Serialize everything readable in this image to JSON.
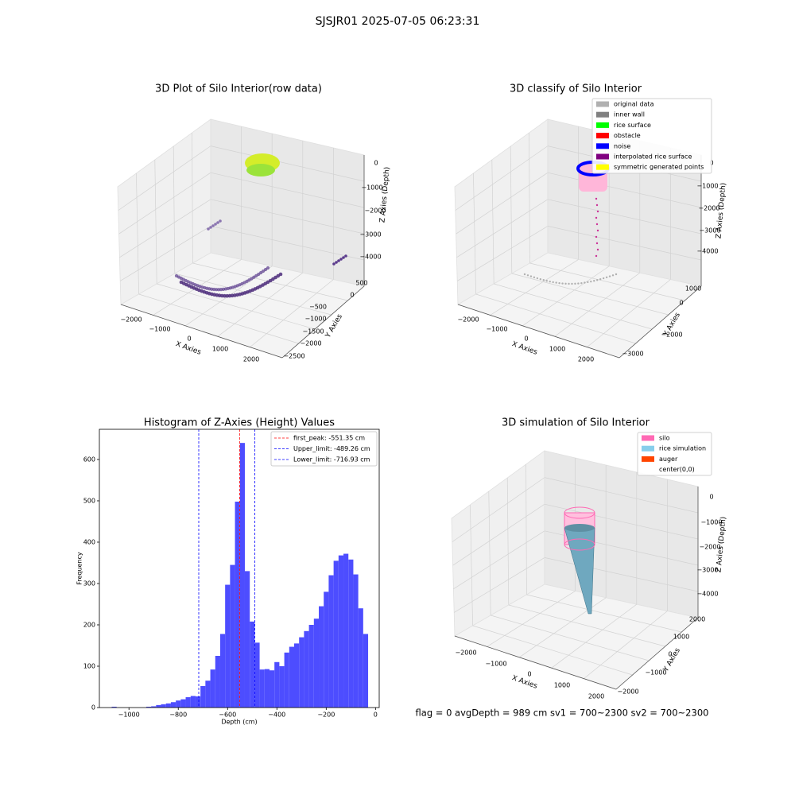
{
  "title": "SJSJR01 2025-07-05 06:23:31",
  "footer": "flag = 0     avgDepth = 989 cm  sv1 = 700~2300  sv2 = 700~2300",
  "chart_data": [
    {
      "type": "scatter3d",
      "title": "3D Plot of Silo Interior(row data)",
      "xlabel": "X Axies",
      "ylabel": "Y Axies",
      "zlabel": "Z Axies (Depth)",
      "x_tick_labels": [
        "−2000",
        "−1000",
        "0",
        "1000",
        "2000"
      ],
      "y_tick_labels": [
        "500",
        "0",
        "−500",
        "−1000",
        "−1500",
        "−2000",
        "−2500"
      ],
      "z_tick_labels": [
        "0",
        "−1000",
        "−2000",
        "−3000",
        "−4000"
      ]
    },
    {
      "type": "scatter3d",
      "title": "3D classify of Silo Interior",
      "xlabel": "X Axies",
      "ylabel": "Y Axies",
      "zlabel": "Z Axies (Depth)",
      "x_tick_labels": [
        "−2000",
        "−1000",
        "0",
        "1000",
        "2000"
      ],
      "y_tick_labels": [
        "1000",
        "0",
        "−2000",
        "−3000"
      ],
      "z_tick_labels": [
        "0",
        "−1000",
        "−2000",
        "−3000",
        "−4000"
      ],
      "legend": [
        {
          "name": "original data",
          "color": "#b0b0b0"
        },
        {
          "name": "inner wall",
          "color": "#808080"
        },
        {
          "name": "rice surface",
          "color": "#00ff00"
        },
        {
          "name": "obstacle",
          "color": "#ff0000"
        },
        {
          "name": "noise",
          "color": "#0000ff"
        },
        {
          "name": "interpolated rice surface",
          "color": "#800080"
        },
        {
          "name": "symmetric generated points",
          "color": "#ffff00"
        }
      ]
    },
    {
      "type": "histogram",
      "title": "Histogram of Z-Axies (Height) Values",
      "xlabel": "Depth (cm)",
      "ylabel": "Frequency",
      "color": "#4d4dff",
      "bins": [
        -1070,
        -1050,
        -1030,
        -1010,
        -990,
        -970,
        -950,
        -930,
        -910,
        -890,
        -870,
        -850,
        -830,
        -810,
        -790,
        -770,
        -750,
        -730,
        -710,
        -690,
        -670,
        -650,
        -630,
        -610,
        -590,
        -570,
        -550,
        -530,
        -510,
        -490,
        -470,
        -450,
        -430,
        -410,
        -390,
        -370,
        -350,
        -330,
        -310,
        -290,
        -270,
        -250,
        -230,
        -210,
        -190,
        -170,
        -150,
        -130,
        -110,
        -90,
        -70,
        -50,
        -30
      ],
      "values": [
        2,
        0,
        0,
        0,
        0,
        0,
        0,
        2,
        3,
        6,
        8,
        10,
        13,
        17,
        20,
        25,
        28,
        27,
        52,
        65,
        92,
        125,
        178,
        297,
        345,
        498,
        640,
        330,
        208,
        157,
        92,
        93,
        90,
        110,
        100,
        133,
        147,
        155,
        170,
        185,
        200,
        215,
        245,
        280,
        320,
        355,
        368,
        372,
        358,
        322,
        240,
        178
      ],
      "xlim": [
        -1120,
        15
      ],
      "ylim": [
        0,
        673
      ],
      "xticks": [
        {
          "value": -1000,
          "label": "−1000"
        },
        {
          "value": -800,
          "label": "−800"
        },
        {
          "value": -600,
          "label": "−600"
        },
        {
          "value": -400,
          "label": "−400"
        },
        {
          "value": -200,
          "label": "−200"
        },
        0
      ],
      "yticks": [
        0,
        100,
        200,
        300,
        400,
        500,
        600
      ],
      "vlines": [
        {
          "name": "first_peak: -551.35 cm",
          "value": -551.35,
          "color": "#ff0000"
        },
        {
          "name": "Upper_limit: -489.26 cm",
          "value": -489.26,
          "color": "#0000ff"
        },
        {
          "name": "Lower_limit: -716.93 cm",
          "value": -716.93,
          "color": "#0000ff"
        }
      ]
    },
    {
      "type": "surface3d",
      "title": "3D simulation of Silo Interior",
      "xlabel": "X Axies",
      "ylabel": "Y Axies",
      "zlabel": "Z Axies (Depth)",
      "x_tick_labels": [
        "−2000",
        "−1000",
        "0",
        "1000",
        "2000"
      ],
      "y_tick_labels": [
        "2000",
        "1000",
        "0",
        "−1000",
        "−2000"
      ],
      "z_tick_labels": [
        "0",
        "−1000",
        "−2000",
        "−3000",
        "−4000"
      ],
      "legend": [
        {
          "name": "silo",
          "color": "#ff69b4"
        },
        {
          "name": "rice simulation",
          "color": "#87ceeb"
        },
        {
          "name": "auger",
          "color": "#ff4500"
        },
        {
          "name": "center(0,0)",
          "color": "#ffffff"
        }
      ]
    }
  ]
}
